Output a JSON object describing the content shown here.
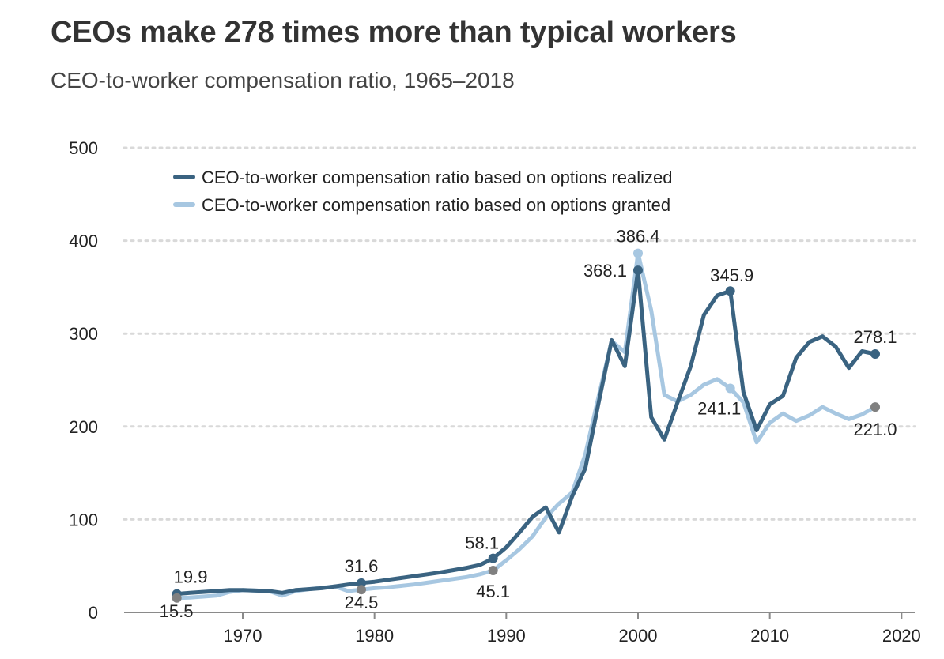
{
  "title": "CEOs make 278 times more than typical workers",
  "subtitle": "CEO-to-worker compensation ratio, 1965–2018",
  "colors": {
    "realized": "#3a6381",
    "granted": "#a7c7e1",
    "marker_gray": "#808080",
    "grid": "#d9d9d9",
    "axis": "#8a8a8a"
  },
  "chart_data": {
    "type": "line",
    "title": "",
    "xlabel": "",
    "ylabel": "",
    "xlim": [
      1961,
      2021
    ],
    "ylim": [
      0,
      500
    ],
    "x_ticks": [
      1970,
      1980,
      1990,
      2000,
      2010,
      2020
    ],
    "y_ticks": [
      0,
      100,
      200,
      300,
      400,
      500
    ],
    "grid": "horizontal dotted",
    "legend_position": "top-left",
    "series": [
      {
        "name": "CEO-to-worker compensation ratio based on options realized",
        "color": "#3a6381",
        "x": [
          1965,
          1966,
          1967,
          1968,
          1969,
          1970,
          1971,
          1972,
          1973,
          1974,
          1975,
          1976,
          1977,
          1978,
          1979,
          1980,
          1981,
          1982,
          1983,
          1984,
          1985,
          1986,
          1987,
          1988,
          1989,
          1990,
          1991,
          1992,
          1993,
          1994,
          1995,
          1996,
          1997,
          1998,
          1999,
          2000,
          2001,
          2002,
          2003,
          2004,
          2005,
          2006,
          2007,
          2008,
          2009,
          2010,
          2011,
          2012,
          2013,
          2014,
          2015,
          2016,
          2017,
          2018
        ],
        "y": [
          19.9,
          21,
          22,
          23,
          24,
          24,
          23.5,
          23,
          21,
          24,
          25,
          26,
          28,
          30,
          31.6,
          33,
          35,
          37,
          39,
          41,
          43,
          45.5,
          48,
          51,
          58.1,
          70,
          86,
          103,
          113,
          86,
          125,
          155,
          225,
          293,
          265,
          368.1,
          210,
          186,
          226,
          265,
          320,
          341,
          345.9,
          237,
          196,
          224,
          233,
          274,
          291,
          297,
          286,
          263,
          281,
          278.1
        ]
      },
      {
        "name": "CEO-to-worker compensation ratio based on options granted",
        "color": "#a7c7e1",
        "x": [
          1965,
          1966,
          1967,
          1968,
          1969,
          1970,
          1971,
          1972,
          1973,
          1974,
          1975,
          1976,
          1977,
          1978,
          1979,
          1980,
          1981,
          1982,
          1983,
          1984,
          1985,
          1986,
          1987,
          1988,
          1989,
          1990,
          1991,
          1992,
          1993,
          1994,
          1995,
          1996,
          1997,
          1998,
          1999,
          2000,
          2001,
          2002,
          2003,
          2004,
          2005,
          2006,
          2007,
          2008,
          2009,
          2010,
          2011,
          2012,
          2013,
          2014,
          2015,
          2016,
          2017,
          2018
        ],
        "y": [
          15.5,
          16,
          17,
          18,
          22,
          24,
          23.5,
          23,
          18,
          23,
          25,
          26.5,
          28,
          23,
          24.5,
          26,
          27,
          28.5,
          30,
          32,
          34,
          36,
          38,
          41,
          45.1,
          56,
          68,
          82,
          102,
          117,
          129,
          170,
          232,
          292,
          280,
          386.4,
          325,
          234,
          227,
          234,
          245,
          251,
          241.1,
          226,
          183,
          204,
          214,
          206,
          212,
          221,
          214,
          208,
          213,
          221.0
        ]
      }
    ],
    "annotations": [
      {
        "series": 0,
        "x": 1965,
        "y": 19.9,
        "label": "19.9",
        "marker": "realized",
        "anchor": "start",
        "dx": -4,
        "dy": -14
      },
      {
        "series": 1,
        "x": 1965,
        "y": 15.5,
        "label": "15.5",
        "marker": "gray",
        "anchor": "start",
        "dx": -22,
        "dy": 24
      },
      {
        "series": 0,
        "x": 1979,
        "y": 31.6,
        "label": "31.6",
        "marker": "realized",
        "anchor": "middle",
        "dx": 0,
        "dy": -14
      },
      {
        "series": 1,
        "x": 1979,
        "y": 24.5,
        "label": "24.5",
        "marker": "gray",
        "anchor": "middle",
        "dx": 0,
        "dy": 24
      },
      {
        "series": 0,
        "x": 1989,
        "y": 58.1,
        "label": "58.1",
        "marker": "realized",
        "anchor": "middle",
        "dx": -14,
        "dy": -12
      },
      {
        "series": 1,
        "x": 1989,
        "y": 45.1,
        "label": "45.1",
        "marker": "gray",
        "anchor": "middle",
        "dx": 0,
        "dy": 34
      },
      {
        "series": 0,
        "x": 2000,
        "y": 368.1,
        "label": "368.1",
        "marker": "realized",
        "anchor": "end",
        "dx": -14,
        "dy": 8
      },
      {
        "series": 1,
        "x": 2000,
        "y": 386.4,
        "label": "386.4",
        "marker": "granted",
        "anchor": "middle",
        "dx": 0,
        "dy": -14
      },
      {
        "series": 0,
        "x": 2007,
        "y": 345.9,
        "label": "345.9",
        "marker": "realized",
        "anchor": "middle",
        "dx": 2,
        "dy": -12
      },
      {
        "series": 1,
        "x": 2007,
        "y": 241.1,
        "label": "241.1",
        "marker": "granted",
        "anchor": "middle",
        "dx": -14,
        "dy": 33
      },
      {
        "series": 0,
        "x": 2018,
        "y": 278.1,
        "label": "278.1",
        "marker": "realized",
        "anchor": "middle",
        "dx": 0,
        "dy": -14
      },
      {
        "series": 1,
        "x": 2018,
        "y": 221.0,
        "label": "221.0",
        "marker": "gray",
        "anchor": "middle",
        "dx": 0,
        "dy": 36
      }
    ]
  }
}
